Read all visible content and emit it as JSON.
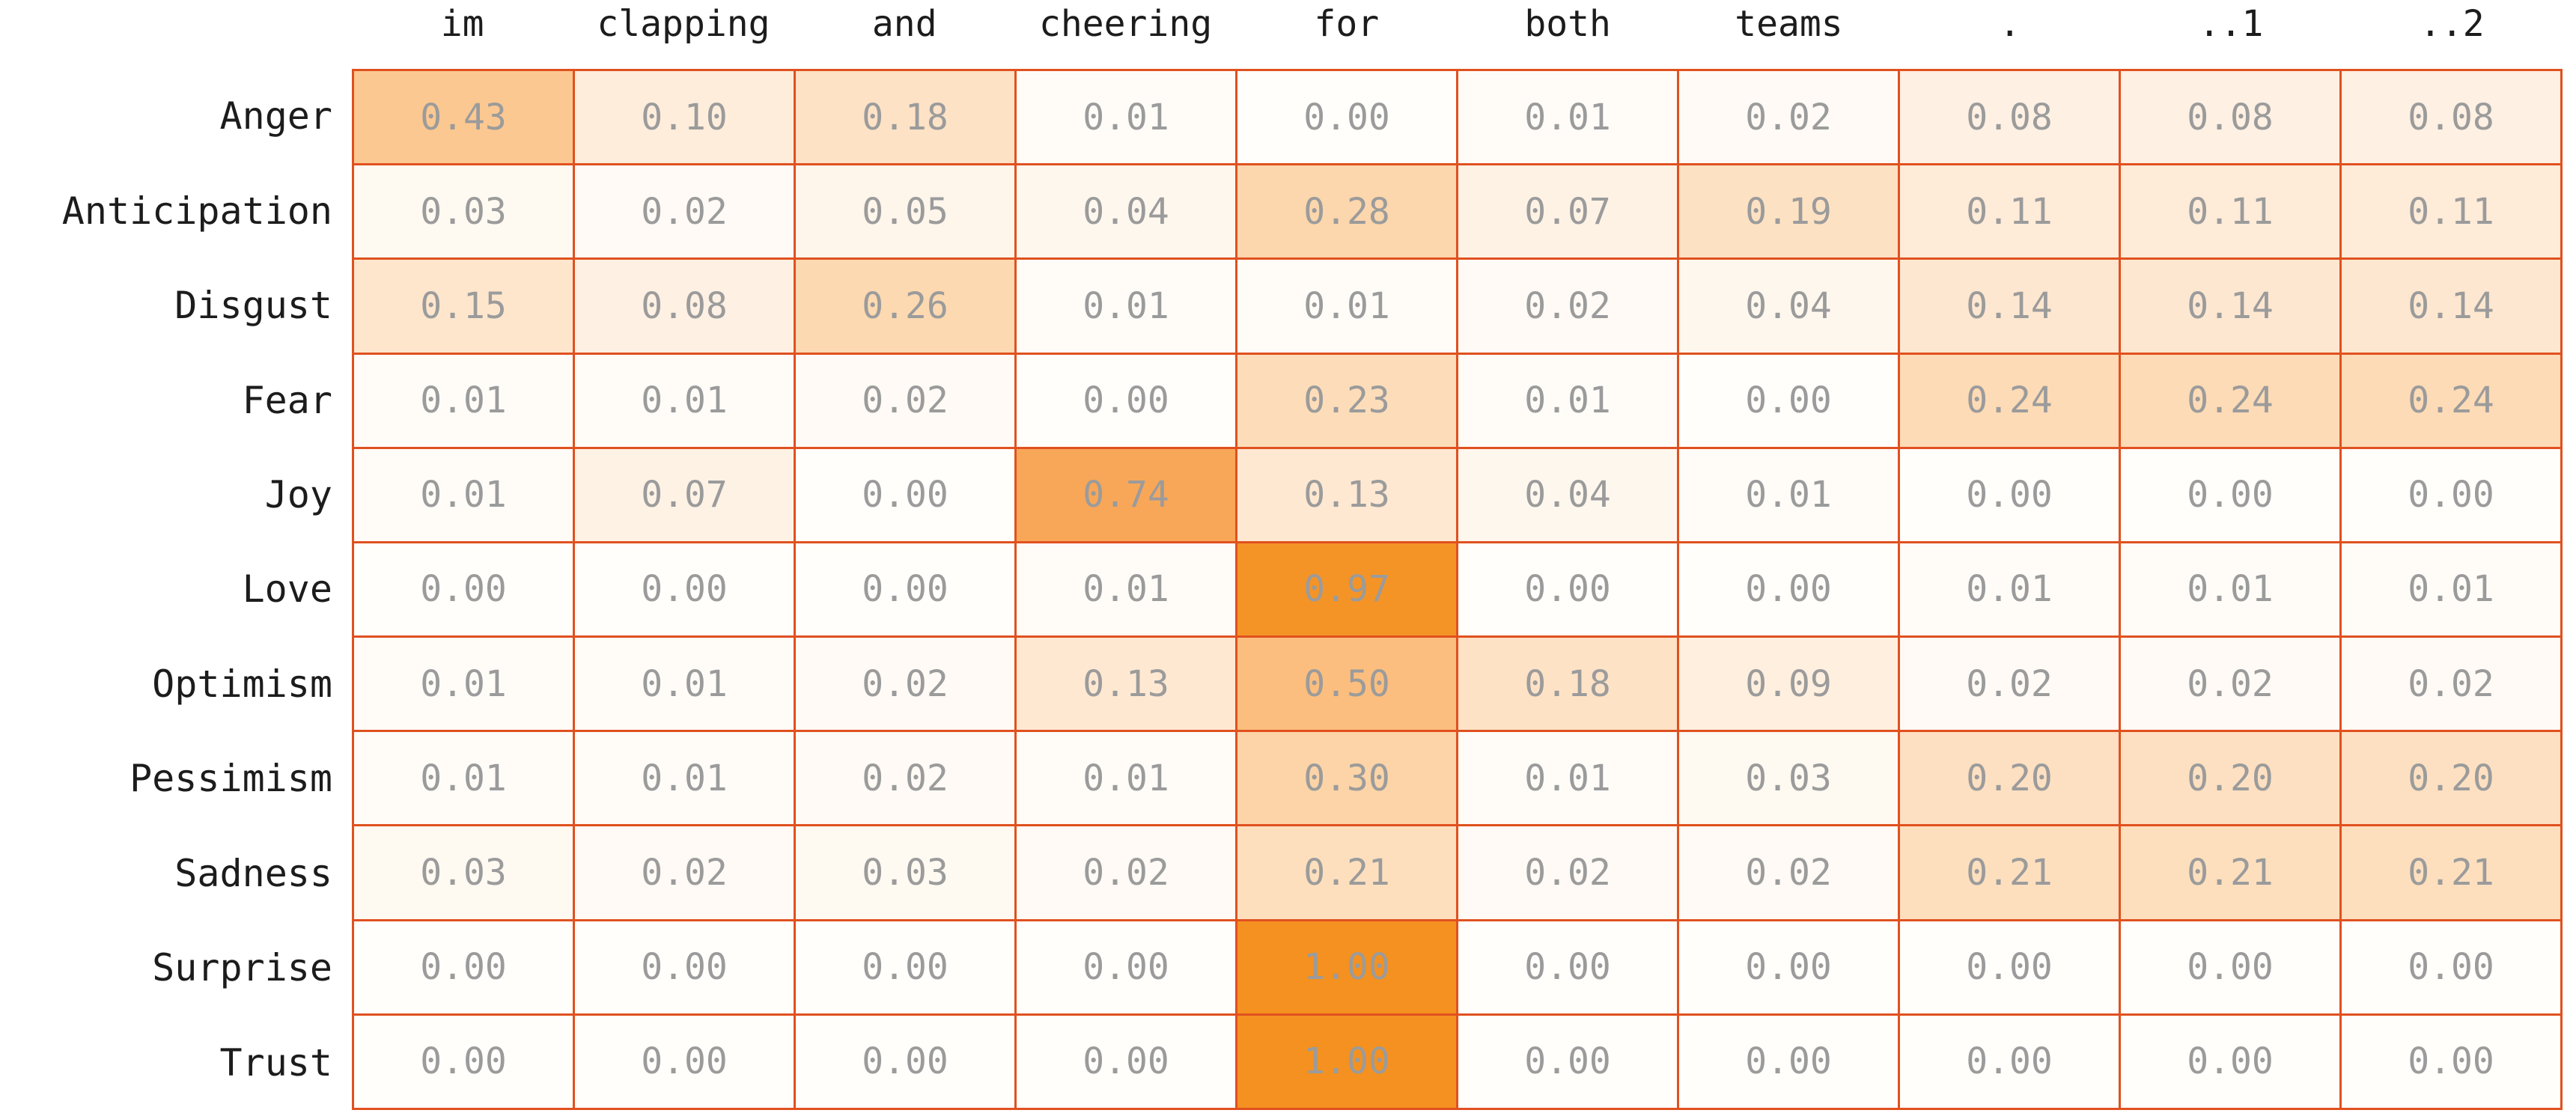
{
  "chart_data": {
    "type": "heatmap",
    "x_tick_labels": [
      "im",
      "clapping",
      "and",
      "cheering",
      "for",
      "both",
      "teams",
      ".",
      "..1",
      "..2"
    ],
    "y_tick_labels": [
      "Anger",
      "Anticipation",
      "Disgust",
      "Fear",
      "Joy",
      "Love",
      "Optimism",
      "Pessimism",
      "Sadness",
      "Surprise",
      "Trust"
    ],
    "values": [
      [
        0.43,
        0.1,
        0.18,
        0.01,
        0.0,
        0.01,
        0.02,
        0.08,
        0.08,
        0.08
      ],
      [
        0.03,
        0.02,
        0.05,
        0.04,
        0.28,
        0.07,
        0.19,
        0.11,
        0.11,
        0.11
      ],
      [
        0.15,
        0.08,
        0.26,
        0.01,
        0.01,
        0.02,
        0.04,
        0.14,
        0.14,
        0.14
      ],
      [
        0.01,
        0.01,
        0.02,
        0.0,
        0.23,
        0.01,
        0.0,
        0.24,
        0.24,
        0.24
      ],
      [
        0.01,
        0.07,
        0.0,
        0.74,
        0.13,
        0.04,
        0.01,
        0.0,
        0.0,
        0.0
      ],
      [
        0.0,
        0.0,
        0.0,
        0.01,
        0.97,
        0.0,
        0.0,
        0.01,
        0.01,
        0.01
      ],
      [
        0.01,
        0.01,
        0.02,
        0.13,
        0.5,
        0.18,
        0.09,
        0.02,
        0.02,
        0.02
      ],
      [
        0.01,
        0.01,
        0.02,
        0.01,
        0.3,
        0.01,
        0.03,
        0.2,
        0.2,
        0.2
      ],
      [
        0.03,
        0.02,
        0.03,
        0.02,
        0.21,
        0.02,
        0.02,
        0.21,
        0.21,
        0.21
      ],
      [
        0.0,
        0.0,
        0.0,
        0.0,
        1.0,
        0.0,
        0.0,
        0.0,
        0.0,
        0.0
      ],
      [
        0.0,
        0.0,
        0.0,
        0.0,
        1.0,
        0.0,
        0.0,
        0.0,
        0.0,
        0.0
      ]
    ],
    "value_format_decimals": 2,
    "value_range": [
      0.0,
      1.0
    ],
    "grid_on": true,
    "legend_position": "none",
    "title": "",
    "xlabel": "",
    "ylabel": ""
  },
  "theme": {
    "background_color": "#ffffff",
    "grid_line_color": "#e0511f",
    "label_text_color": "#1c1c1c",
    "value_text_color": "#9b9b9b",
    "colormap_name": "oranges-light",
    "colormap_stops": [
      [
        0.0,
        "#fffefb"
      ],
      [
        0.05,
        "#fef5eb"
      ],
      [
        0.13,
        "#fee8d2"
      ],
      [
        0.21,
        "#fddfbe"
      ],
      [
        0.3,
        "#fcd4a7"
      ],
      [
        0.43,
        "#fcc891"
      ],
      [
        0.55,
        "#fab770"
      ],
      [
        0.74,
        "#f8a758"
      ],
      [
        1.0,
        "#f49120"
      ]
    ]
  }
}
